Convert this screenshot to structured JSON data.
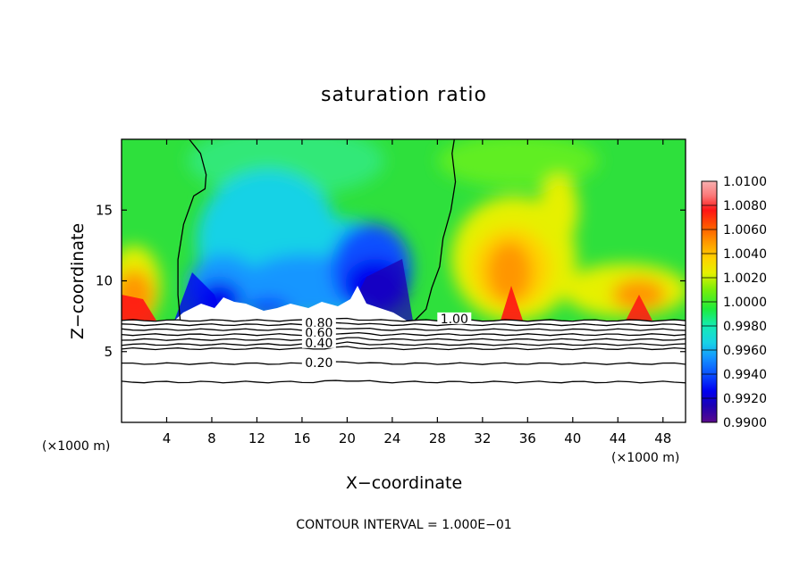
{
  "chart_data": {
    "type": "heatmap",
    "title": "saturation ratio",
    "xlabel": "X−coordinate",
    "ylabel": "Z−coordinate",
    "x_unit_label": "(×1000 m)",
    "x_unit_label_right": "(×1000 m)",
    "xlim": [
      0,
      50
    ],
    "ylim": [
      0,
      20
    ],
    "x_ticks": [
      "4",
      "8",
      "12",
      "16",
      "20",
      "24",
      "28",
      "32",
      "36",
      "40",
      "44",
      "48"
    ],
    "y_ticks": [
      "5",
      "10",
      "15"
    ],
    "footer": "CONTOUR INTERVAL = 1.000E−01",
    "colorbar": {
      "min": 0.99,
      "max": 1.01,
      "tick_labels": [
        "1.0100",
        "1.0080",
        "1.0060",
        "1.0040",
        "1.0020",
        "1.0000",
        "0.9980",
        "0.9960",
        "0.9940",
        "0.9920",
        "0.9900"
      ]
    },
    "contour_labels": [
      {
        "text": "1.00",
        "x": 29.5,
        "z": 7.2
      },
      {
        "text": "0.80",
        "x": 17.5,
        "z": 6.9
      },
      {
        "text": "0.60",
        "x": 17.5,
        "z": 6.2
      },
      {
        "text": "0.40",
        "x": 17.5,
        "z": 5.5
      },
      {
        "text": "0.20",
        "x": 17.5,
        "z": 4.1
      }
    ],
    "contour_one_left_x": [
      6.0,
      7.0,
      7.5,
      7.4,
      6.4,
      5.5,
      5.0,
      5.0,
      5.2
    ],
    "contour_one_left_z": [
      20.0,
      19.0,
      17.5,
      16.5,
      16.0,
      14.0,
      11.5,
      9.0,
      7.2
    ],
    "contour_one_right_x": [
      29.5,
      29.3,
      29.6,
      29.2,
      28.5,
      28.2,
      27.5,
      27.0,
      26.0
    ],
    "contour_one_right_z": [
      20.0,
      19.0,
      17.0,
      15.0,
      13.0,
      11.0,
      9.5,
      8.0,
      7.2
    ],
    "ground_contours_z": [
      7.2,
      6.9,
      6.55,
      6.2,
      5.85,
      5.5,
      5.2,
      4.15,
      2.85
    ]
  },
  "colors": {
    "colorbar_stops": [
      "#5a0a8c",
      "#1c00b4",
      "#0000f0",
      "#0a50ff",
      "#1496ff",
      "#18d2e6",
      "#14ebb4",
      "#1eeb3c",
      "#78ee0a",
      "#e6f000",
      "#ffd200",
      "#ff9600",
      "#ff5a00",
      "#ff1414",
      "#fa7878",
      "#f8b0b0"
    ]
  }
}
